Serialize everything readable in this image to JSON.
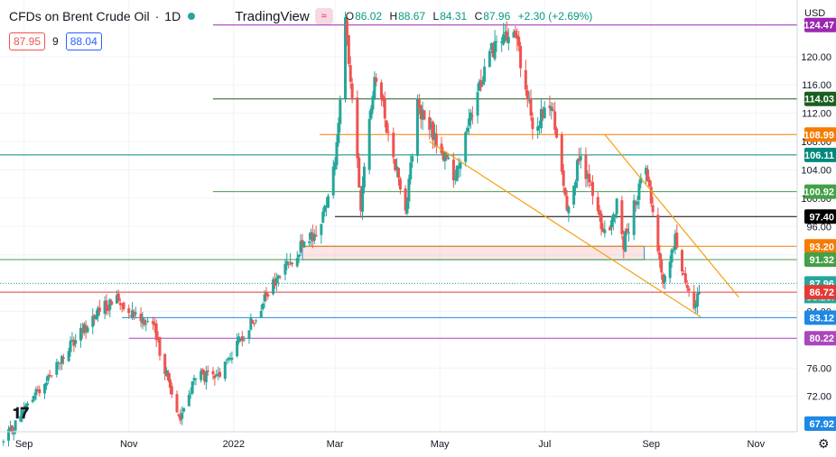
{
  "header": {
    "symbol": "CFDs on Brent Crude Oil",
    "separator": "·",
    "interval": "1D",
    "source": "TradingView",
    "wave_glyph": "≈",
    "ohlc": {
      "o_key": "O",
      "o": "86.02",
      "h_key": "H",
      "h": "88.67",
      "l_key": "L",
      "l": "84.31",
      "c_key": "C",
      "c": "87.96",
      "change": "+2.30 (+2.69%)"
    }
  },
  "trade": {
    "sell": "87.95",
    "spread": "9",
    "buy": "88.04"
  },
  "axis": {
    "currency": "USD"
  },
  "colors": {
    "up": "#26a69a",
    "down": "#ef5350",
    "grid": "#f0f3fa",
    "trend": "#f59e0b"
  },
  "chart_data": {
    "type": "candlestick",
    "title": "CFDs on Brent Crude Oil",
    "ylim": [
      67,
      128
    ],
    "xlim": [
      "2021-08-18",
      "2022-11-25"
    ],
    "y_ticks": [
      72,
      76,
      80,
      84,
      88,
      92,
      96,
      100,
      104,
      108,
      112,
      116,
      120
    ],
    "x_ticks": [
      {
        "date": "2021-09-01",
        "label": "Sep"
      },
      {
        "date": "2021-11-01",
        "label": "Nov"
      },
      {
        "date": "2022-01-01",
        "label": "2022"
      },
      {
        "date": "2022-03-01",
        "label": "Mar"
      },
      {
        "date": "2022-05-01",
        "label": "May"
      },
      {
        "date": "2022-07-01",
        "label": "Jul"
      },
      {
        "date": "2022-09-01",
        "label": "Sep"
      },
      {
        "date": "2022-11-01",
        "label": "Nov"
      }
    ],
    "grid": true,
    "anchors": [
      [
        "2021-08-20",
        65.5
      ],
      [
        "2021-09-05",
        71.5
      ],
      [
        "2021-09-25",
        78.0
      ],
      [
        "2021-10-12",
        83.5
      ],
      [
        "2021-10-25",
        85.8
      ],
      [
        "2021-11-15",
        82.0
      ],
      [
        "2021-11-26",
        72.5
      ],
      [
        "2021-12-01",
        68.9
      ],
      [
        "2021-12-10",
        75.0
      ],
      [
        "2021-12-22",
        74.5
      ],
      [
        "2022-01-10",
        82.0
      ],
      [
        "2022-01-25",
        88.0
      ],
      [
        "2022-02-05",
        92.0
      ],
      [
        "2022-02-20",
        95.5
      ],
      [
        "2022-03-01",
        105.0
      ],
      [
        "2022-03-07",
        124.5
      ],
      [
        "2022-03-16",
        99.0
      ],
      [
        "2022-03-24",
        118.0
      ],
      [
        "2022-04-11",
        98.5
      ],
      [
        "2022-04-18",
        113.0
      ],
      [
        "2022-05-10",
        103.0
      ],
      [
        "2022-05-30",
        121.0
      ],
      [
        "2022-06-14",
        123.0
      ],
      [
        "2022-06-24",
        110.0
      ],
      [
        "2022-07-05",
        113.0
      ],
      [
        "2022-07-14",
        99.0
      ],
      [
        "2022-07-22",
        106.0
      ],
      [
        "2022-08-05",
        94.5
      ],
      [
        "2022-08-12",
        99.0
      ],
      [
        "2022-08-16",
        93.5
      ],
      [
        "2022-08-29",
        105.0
      ],
      [
        "2022-09-08",
        88.0
      ],
      [
        "2022-09-15",
        94.0
      ],
      [
        "2022-09-26",
        84.3
      ],
      [
        "2022-09-30",
        87.96
      ]
    ],
    "levels": [
      {
        "value": 124.47,
        "label": "124.47",
        "line_color": "#9c27b0",
        "tag_color": "#9c27b0",
        "range_from": "2021-12-20"
      },
      {
        "value": 114.03,
        "label": "114.03",
        "line_color": "#1b5e20",
        "tag_color": "#1b5e20",
        "range_from": "2021-12-20"
      },
      {
        "value": 108.99,
        "label": "108.99",
        "line_color": "#f57c00",
        "tag_color": "#f57c00",
        "range_from": "2022-02-20"
      },
      {
        "value": 106.11,
        "label": "106.11",
        "line_color": "#00897b",
        "tag_color": "#00897b",
        "range_from": "2021-08-18"
      },
      {
        "value": 100.92,
        "label": "100.92",
        "line_color": "#43a047",
        "tag_color": "#43a047",
        "range_from": "2021-12-20"
      },
      {
        "value": 97.4,
        "label": "97.40",
        "line_color": "#000000",
        "tag_color": "#000000",
        "range_from": "2022-03-01"
      },
      {
        "value": 93.2,
        "label": "93.20",
        "line_color": "#f57c00",
        "tag_color": "#f57c00",
        "range_from": "2022-02-10"
      },
      {
        "value": 91.32,
        "label": "91.32",
        "line_color": "#43a047",
        "tag_color": "#43a047",
        "range_from": "2021-08-18"
      },
      {
        "value": 87.96,
        "label": "87.96",
        "line_color": "#26a69a",
        "tag_color": "#26a69a",
        "range_from": "2021-08-18",
        "dotted": true,
        "countdown": "06:26:"
      },
      {
        "value": 86.72,
        "label": "86.72",
        "line_color": "#e53935",
        "tag_color": "#e53935",
        "range_from": "2021-08-18"
      },
      {
        "value": 83.12,
        "label": "83.12",
        "line_color": "#1e88e5",
        "tag_color": "#1e88e5",
        "range_from": "2021-10-28"
      },
      {
        "value": 80.22,
        "label": "80.22",
        "line_color": "#ab47bc",
        "tag_color": "#ab47bc",
        "range_from": "2021-11-01"
      },
      {
        "value": 67.92,
        "label": "67.92",
        "line_color": "#1e88e5",
        "tag_color": "#1e88e5",
        "range_from": null
      }
    ],
    "zone": {
      "from": "2022-02-10",
      "to": "2022-08-28",
      "low": 91.3,
      "high": 93.2
    },
    "trendlines": [
      [
        [
          "2022-04-25",
          108.0
        ],
        [
          "2022-09-30",
          83.2
        ]
      ],
      [
        [
          "2022-08-05",
          109.0
        ],
        [
          "2022-10-22",
          86.0
        ]
      ]
    ]
  }
}
